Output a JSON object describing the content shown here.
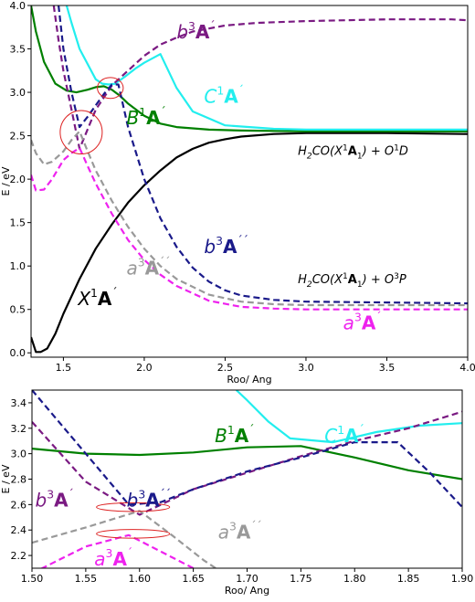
{
  "chart_data": [
    {
      "type": "line",
      "xlabel": "Roo/ Ang",
      "ylabel": "E / eV",
      "xlim": [
        1.3,
        4.0
      ],
      "ylim": [
        -0.05,
        4.0
      ],
      "xticks": [
        "1.5",
        "2.0",
        "2.5",
        "3.0",
        "3.5",
        "4.0"
      ],
      "xtick_values": [
        1.5,
        2.0,
        2.5,
        3.0,
        3.5,
        4.0
      ],
      "yticks": [
        "0.0",
        "0.5",
        "1.0",
        "1.5",
        "2.0",
        "2.5",
        "3.0",
        "3.5",
        "4.0"
      ],
      "ytick_values": [
        0.0,
        0.5,
        1.0,
        1.5,
        2.0,
        2.5,
        3.0,
        3.5,
        4.0
      ],
      "series": [
        {
          "name": "X1A'",
          "color": "#000000",
          "dash": false,
          "x": [
            1.3,
            1.33,
            1.36,
            1.4,
            1.45,
            1.5,
            1.6,
            1.7,
            1.8,
            1.9,
            2.0,
            2.1,
            2.2,
            2.3,
            2.4,
            2.5,
            2.6,
            2.8,
            3.0,
            3.2,
            3.5,
            4.0
          ],
          "y": [
            0.18,
            0.01,
            0.01,
            0.05,
            0.22,
            0.45,
            0.85,
            1.2,
            1.48,
            1.73,
            1.93,
            2.1,
            2.25,
            2.35,
            2.42,
            2.46,
            2.49,
            2.52,
            2.53,
            2.53,
            2.53,
            2.52
          ]
        },
        {
          "name": "B1A'",
          "color": "#008000",
          "dash": false,
          "x": [
            1.3,
            1.33,
            1.38,
            1.45,
            1.52,
            1.58,
            1.65,
            1.7,
            1.75,
            1.8,
            1.85,
            1.9,
            2.0,
            2.1,
            2.2,
            2.4,
            2.6,
            3.0,
            3.5,
            4.0
          ],
          "y": [
            4.0,
            3.7,
            3.35,
            3.1,
            3.02,
            3.0,
            3.03,
            3.06,
            3.07,
            3.03,
            2.96,
            2.87,
            2.73,
            2.64,
            2.6,
            2.57,
            2.56,
            2.55,
            2.55,
            2.55
          ]
        },
        {
          "name": "C1A'",
          "color": "#22eeee",
          "dash": false,
          "x": [
            1.52,
            1.55,
            1.6,
            1.7,
            1.74,
            1.78,
            1.82,
            1.88,
            1.95,
            2.0,
            2.1,
            2.2,
            2.3,
            2.5,
            2.8,
            3.0,
            3.5,
            4.0
          ],
          "y": [
            4.0,
            3.8,
            3.5,
            3.15,
            3.1,
            3.09,
            3.1,
            3.18,
            3.28,
            3.34,
            3.44,
            3.05,
            2.78,
            2.62,
            2.58,
            2.57,
            2.57,
            2.57
          ]
        },
        {
          "name": "b3A'",
          "color": "#7a1a82",
          "dash": true,
          "x": [
            1.44,
            1.47,
            1.5,
            1.55,
            1.6,
            1.7,
            1.8,
            1.9,
            2.0,
            2.1,
            2.2,
            2.3,
            2.5,
            2.7,
            3.0,
            3.5,
            3.9,
            4.0
          ],
          "y": [
            4.0,
            3.6,
            3.25,
            2.8,
            2.35,
            2.8,
            3.08,
            3.25,
            3.42,
            3.55,
            3.63,
            3.7,
            3.77,
            3.8,
            3.82,
            3.84,
            3.84,
            3.83
          ]
        },
        {
          "name": "b3A''",
          "color": "#1a1a8a",
          "dash": true,
          "x": [
            1.47,
            1.5,
            1.55,
            1.6,
            1.65,
            1.7,
            1.75,
            1.8,
            1.84,
            1.9,
            2.0,
            2.1,
            2.2,
            2.3,
            2.4,
            2.5,
            2.6,
            2.8,
            3.0,
            3.5,
            4.0
          ],
          "y": [
            4.0,
            3.5,
            3.0,
            2.6,
            2.72,
            2.85,
            2.98,
            3.09,
            3.09,
            2.6,
            2.0,
            1.55,
            1.22,
            0.98,
            0.82,
            0.72,
            0.66,
            0.61,
            0.59,
            0.58,
            0.57
          ]
        },
        {
          "name": "a3A''",
          "color": "#999999",
          "dash": true,
          "x": [
            1.3,
            1.33,
            1.38,
            1.43,
            1.5,
            1.55,
            1.6,
            1.65,
            1.7,
            1.8,
            1.9,
            2.0,
            2.1,
            2.2,
            2.4,
            2.6,
            2.8,
            3.0,
            3.5,
            4.0
          ],
          "y": [
            2.45,
            2.3,
            2.17,
            2.2,
            2.32,
            2.45,
            2.55,
            2.32,
            2.1,
            1.75,
            1.45,
            1.2,
            1.0,
            0.85,
            0.67,
            0.59,
            0.56,
            0.55,
            0.55,
            0.55
          ]
        },
        {
          "name": "a3A'",
          "color": "#ee22ee",
          "dash": true,
          "x": [
            1.3,
            1.33,
            1.38,
            1.43,
            1.5,
            1.55,
            1.6,
            1.65,
            1.7,
            1.8,
            1.9,
            2.0,
            2.1,
            2.2,
            2.4,
            2.6,
            2.8,
            3.0,
            3.5,
            4.0
          ],
          "y": [
            2.05,
            1.87,
            1.88,
            2.0,
            2.22,
            2.3,
            2.36,
            2.15,
            1.95,
            1.6,
            1.3,
            1.07,
            0.9,
            0.77,
            0.6,
            0.53,
            0.51,
            0.5,
            0.5,
            0.5
          ]
        }
      ],
      "annotations": [
        {
          "kind": "ellipse",
          "cx": 1.61,
          "cy": 2.54,
          "rx": 0.13,
          "ry": 0.25,
          "color": "#dd2222"
        },
        {
          "kind": "ellipse",
          "cx": 1.79,
          "cy": 3.05,
          "rx": 0.08,
          "ry": 0.12,
          "color": "#dd2222"
        }
      ],
      "labels": [
        {
          "id": "b3Ap",
          "x": 2.2,
          "y": 3.62,
          "color": "#7a1a82",
          "base": "b",
          "mult": "3",
          "sym": "A",
          "prime": "´"
        },
        {
          "id": "C1Ap",
          "x": 2.37,
          "y": 2.88,
          "color": "#22eeee",
          "base": "C",
          "mult": "1",
          "sym": "A",
          "prime": "´"
        },
        {
          "id": "B1Ap",
          "x": 1.89,
          "y": 2.63,
          "color": "#008000",
          "base": "B",
          "mult": "1",
          "sym": "A",
          "prime": "´"
        },
        {
          "id": "b3App",
          "x": 2.37,
          "y": 1.15,
          "color": "#1a1a8a",
          "base": "b",
          "mult": "3",
          "sym": "A",
          "prime": "´´"
        },
        {
          "id": "a3App",
          "x": 1.89,
          "y": 0.9,
          "color": "#999999",
          "base": "a",
          "mult": "3",
          "sym": "A",
          "prime": "´´"
        },
        {
          "id": "X1Ap",
          "x": 1.59,
          "y": 0.55,
          "color": "#000000",
          "base": "X",
          "mult": "1",
          "sym": "A",
          "prime": "´"
        },
        {
          "id": "a3Ap",
          "x": 3.23,
          "y": 0.27,
          "color": "#ee22ee",
          "base": "a",
          "mult": "3",
          "sym": "A",
          "prime": "´"
        }
      ],
      "asymptote_labels": [
        {
          "id": "o1d",
          "x": 2.95,
          "y": 2.28,
          "pre": "H",
          "sub1": "2",
          "mid": "CO(X",
          "sup1": "1",
          "bold": "A",
          "sub2": "1",
          "post": ") + O",
          "sup2": "1",
          "tail": "D"
        },
        {
          "id": "o3p",
          "x": 2.95,
          "y": 0.8,
          "pre": "H",
          "sub1": "2",
          "mid": "CO(X",
          "sup1": "1",
          "bold": "A",
          "sub2": "1",
          "post": ") + O",
          "sup2": "3",
          "tail": "P"
        }
      ]
    },
    {
      "type": "line",
      "xlabel": "Roo/ Ang",
      "ylabel": "E / eV",
      "xlim": [
        1.5,
        1.9
      ],
      "ylim": [
        2.1,
        3.5
      ],
      "xticks": [
        "1.50",
        "1.55",
        "1.60",
        "1.65",
        "1.70",
        "1.75",
        "1.80",
        "1.85",
        "1.90"
      ],
      "xtick_values": [
        1.5,
        1.55,
        1.6,
        1.65,
        1.7,
        1.75,
        1.8,
        1.85,
        1.9
      ],
      "yticks": [
        "2.2",
        "2.4",
        "2.6",
        "2.8",
        "3.0",
        "3.2",
        "3.4"
      ],
      "ytick_values": [
        2.2,
        2.4,
        2.6,
        2.8,
        3.0,
        3.2,
        3.4
      ],
      "series": [
        {
          "name": "B1A'",
          "color": "#008000",
          "dash": false,
          "x": [
            1.5,
            1.55,
            1.6,
            1.65,
            1.7,
            1.75,
            1.8,
            1.85,
            1.9
          ],
          "y": [
            3.04,
            3.0,
            2.99,
            3.01,
            3.05,
            3.06,
            2.97,
            2.87,
            2.8
          ]
        },
        {
          "name": "C1A'",
          "color": "#22eeee",
          "dash": false,
          "x": [
            1.69,
            1.7,
            1.72,
            1.74,
            1.78,
            1.82,
            1.86,
            1.9
          ],
          "y": [
            3.5,
            3.42,
            3.25,
            3.12,
            3.09,
            3.17,
            3.22,
            3.24
          ]
        },
        {
          "name": "b3A'",
          "color": "#7a1a82",
          "dash": true,
          "x": [
            1.5,
            1.55,
            1.6,
            1.65,
            1.7,
            1.75,
            1.8,
            1.85,
            1.9
          ],
          "y": [
            3.25,
            2.78,
            2.52,
            2.72,
            2.85,
            2.98,
            3.1,
            3.2,
            3.33
          ]
        },
        {
          "name": "b3A''",
          "color": "#1a1a8a",
          "dash": true,
          "x": [
            1.5,
            1.55,
            1.59,
            1.62,
            1.65,
            1.7,
            1.75,
            1.8,
            1.84,
            1.87,
            1.9
          ],
          "y": [
            3.5,
            3.0,
            2.6,
            2.62,
            2.72,
            2.86,
            2.97,
            3.09,
            3.09,
            2.85,
            2.58
          ]
        },
        {
          "name": "a3A''",
          "color": "#999999",
          "dash": true,
          "x": [
            1.5,
            1.55,
            1.6,
            1.63,
            1.66,
            1.68
          ],
          "y": [
            2.3,
            2.42,
            2.55,
            2.36,
            2.16,
            2.05
          ]
        },
        {
          "name": "a3A'",
          "color": "#ee22ee",
          "dash": true,
          "x": [
            1.5,
            1.55,
            1.59,
            1.62,
            1.65,
            1.67
          ],
          "y": [
            2.06,
            2.27,
            2.36,
            2.23,
            2.1,
            2.02
          ]
        }
      ],
      "annotations": [
        {
          "kind": "ellipse",
          "cx": 1.594,
          "cy": 2.58,
          "rx": 0.034,
          "ry": 0.034,
          "color": "#dd2222"
        },
        {
          "kind": "ellipse",
          "cx": 1.594,
          "cy": 2.37,
          "rx": 0.034,
          "ry": 0.034,
          "color": "#dd2222"
        }
      ],
      "labels": [
        {
          "id": "B1Ap2",
          "x": 1.67,
          "y": 3.09,
          "color": "#008000",
          "base": "B",
          "mult": "1",
          "sym": "A",
          "prime": "´"
        },
        {
          "id": "C1Ap2",
          "x": 1.772,
          "y": 3.09,
          "color": "#22eeee",
          "base": "C",
          "mult": "1",
          "sym": "A",
          "prime": "´"
        },
        {
          "id": "b3Ap2",
          "x": 1.503,
          "y": 2.585,
          "color": "#7a1a82",
          "base": "b",
          "mult": "3",
          "sym": "A",
          "prime": "´"
        },
        {
          "id": "b3App2",
          "x": 1.588,
          "y": 2.585,
          "color": "#1a1a8a",
          "base": "b",
          "mult": "3",
          "sym": "A",
          "prime": "´´"
        },
        {
          "id": "a3App2",
          "x": 1.673,
          "y": 2.335,
          "color": "#999999",
          "base": "a",
          "mult": "3",
          "sym": "A",
          "prime": "´´"
        },
        {
          "id": "a3Ap2",
          "x": 1.558,
          "y": 2.12,
          "color": "#ee22ee",
          "base": "a",
          "mult": "3",
          "sym": "A",
          "prime": "´"
        }
      ],
      "asymptote_labels": []
    }
  ]
}
